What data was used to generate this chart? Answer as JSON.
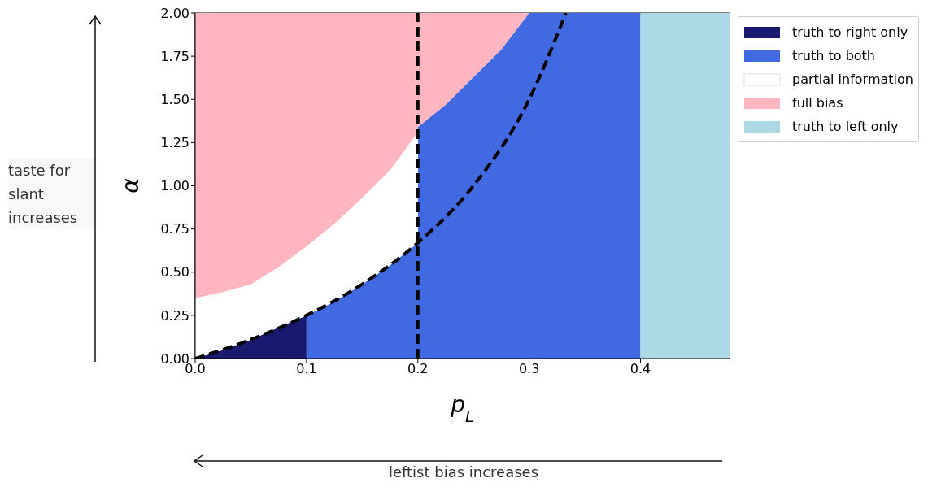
{
  "chart_data": {
    "type": "area",
    "stacked": true,
    "xlabel": "p$_{L}$",
    "ylabel": "α",
    "x": [
      0,
      0.025,
      0.05,
      0.075,
      0.1,
      0.1,
      0.125,
      0.15,
      0.175,
      0.2,
      0.2,
      0.225,
      0.25,
      0.275,
      0.3,
      0.4,
      0.4,
      0.48
    ],
    "series": [
      {
        "name": "truth to right only",
        "color": "#191970",
        "values": [
          0,
          0.05,
          0.11,
          0.18,
          0.25,
          null,
          null,
          null,
          null,
          null,
          null,
          null,
          null,
          null,
          null,
          null,
          null,
          null
        ]
      },
      {
        "name": "truth to both",
        "color": "#4169e1",
        "values": [
          null,
          null,
          null,
          null,
          null,
          0.25,
          0.33,
          0.43,
          0.54,
          0.67,
          1.34,
          1.47,
          1.63,
          1.79,
          2,
          2,
          null,
          null
        ]
      },
      {
        "name": "partial information",
        "color": "#ffffff",
        "values": [
          0.35,
          0.335,
          0.32,
          0.35,
          0.4,
          0.4,
          0.45,
          0.5,
          0.55,
          0.64,
          null,
          null,
          null,
          null,
          null,
          null,
          null,
          null
        ]
      },
      {
        "name": "full bias",
        "color": "#ffb6c1",
        "values": [
          1.65,
          1.615,
          1.57,
          1.47,
          1.35,
          1.35,
          1.22,
          1.07,
          0.91,
          0.69,
          0.66,
          0.53,
          0.37,
          0.21,
          0,
          null,
          null,
          null
        ]
      },
      {
        "name": "truth to left only",
        "color": "#add8e6",
        "values": [
          null,
          null,
          null,
          null,
          null,
          null,
          null,
          null,
          null,
          null,
          null,
          null,
          null,
          null,
          null,
          null,
          2,
          2
        ]
      },
      {
        "type": "line",
        "color": "#000000",
        "line_style": "dashed",
        "x": [
          0,
          0.05,
          0.1,
          0.15,
          0.2,
          0.25,
          0.3,
          0.333
        ],
        "values": [
          0,
          0.11,
          0.25,
          0.43,
          0.67,
          1,
          1.5,
          2
        ]
      }
    ],
    "ref_lines": [
      {
        "axis": "x",
        "value": 0.2,
        "color": "#000000",
        "line_style": "dashed"
      }
    ],
    "xlim": [
      0,
      0.48
    ],
    "ylim": [
      0,
      2
    ],
    "xticks": [
      {
        "value": 0,
        "label": "0.0"
      },
      {
        "value": 0.1,
        "label": "0.1"
      },
      {
        "value": 0.2,
        "label": "0.2"
      },
      {
        "value": 0.3,
        "label": "0.3"
      },
      {
        "value": 0.4,
        "label": "0.4"
      }
    ],
    "yticks": [
      {
        "value": 0,
        "label": "0.00"
      },
      {
        "value": 0.25,
        "label": "0.25"
      },
      {
        "value": 0.5,
        "label": "0.50"
      },
      {
        "value": 0.75,
        "label": "0.75"
      },
      {
        "value": 1,
        "label": "1.00"
      },
      {
        "value": 1.25,
        "label": "1.25"
      },
      {
        "value": 1.5,
        "label": "1.50"
      },
      {
        "value": 1.75,
        "label": "1.75"
      },
      {
        "value": 2,
        "label": "2.00"
      }
    ],
    "legend": "top right",
    "annotations": [
      "taste for slant increases",
      "leftist bias increases"
    ]
  }
}
